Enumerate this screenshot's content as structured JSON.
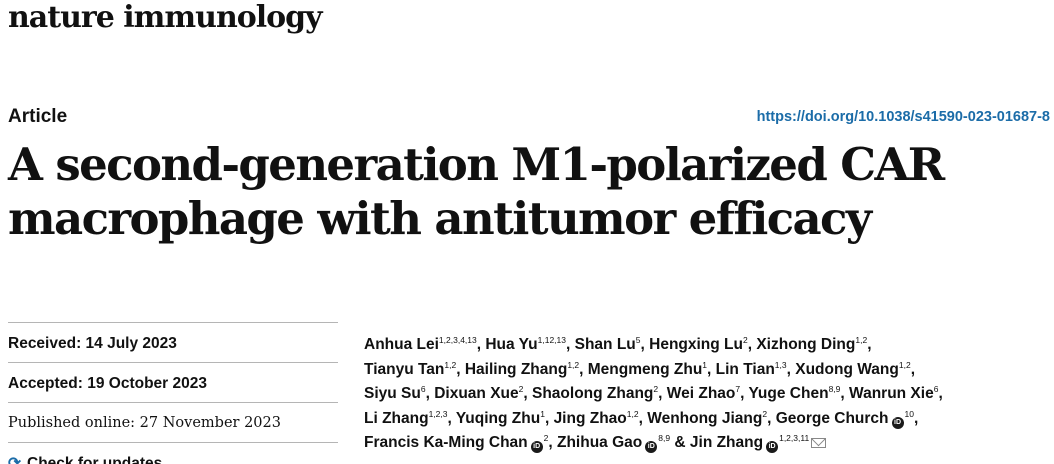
{
  "journal": {
    "name": "nature immunology"
  },
  "article": {
    "type": "Article",
    "doi": "https://doi.org/10.1038/s41590-023-01687-8",
    "title_line1": "A second-generation M1-polarized CAR",
    "title_line2": "macrophage with antitumor efficacy"
  },
  "dates": {
    "received": "Received: 14 July 2023",
    "accepted": "Accepted: 19 October 2023",
    "published": "Published online: 27 November 2023",
    "check_updates": "Check for updates"
  },
  "authors": [
    {
      "name": "Anhua Lei",
      "sup": "1,2,3,4,13"
    },
    {
      "name": "Hua Yu",
      "sup": "1,12,13"
    },
    {
      "name": "Shan Lu",
      "sup": "5"
    },
    {
      "name": "Hengxing Lu",
      "sup": "2"
    },
    {
      "name": "Xizhong Ding",
      "sup": "1,2"
    },
    {
      "name": "Tianyu Tan",
      "sup": "1,2"
    },
    {
      "name": "Hailing Zhang",
      "sup": "1,2"
    },
    {
      "name": "Mengmeng Zhu",
      "sup": "1"
    },
    {
      "name": "Lin Tian",
      "sup": "1,3"
    },
    {
      "name": "Xudong Wang",
      "sup": "1,2"
    },
    {
      "name": "Siyu Su",
      "sup": "6"
    },
    {
      "name": "Dixuan Xue",
      "sup": "2"
    },
    {
      "name": "Shaolong Zhang",
      "sup": "2"
    },
    {
      "name": "Wei Zhao",
      "sup": "7"
    },
    {
      "name": "Yuge Chen",
      "sup": "8,9"
    },
    {
      "name": "Wanrun Xie",
      "sup": "6"
    },
    {
      "name": "Li Zhang",
      "sup": "1,2,3"
    },
    {
      "name": "Yuqing Zhu",
      "sup": "1"
    },
    {
      "name": "Jing Zhao",
      "sup": "1,2"
    },
    {
      "name": "Wenhong Jiang",
      "sup": "2"
    },
    {
      "name": "George Church",
      "sup": "10"
    },
    {
      "name": "Francis Ka-Ming Chan",
      "sup": "2"
    },
    {
      "name": "Zhihua Gao",
      "sup": "8,9"
    },
    {
      "name": "Jin Zhang",
      "sup": "1,2,3,11"
    }
  ]
}
